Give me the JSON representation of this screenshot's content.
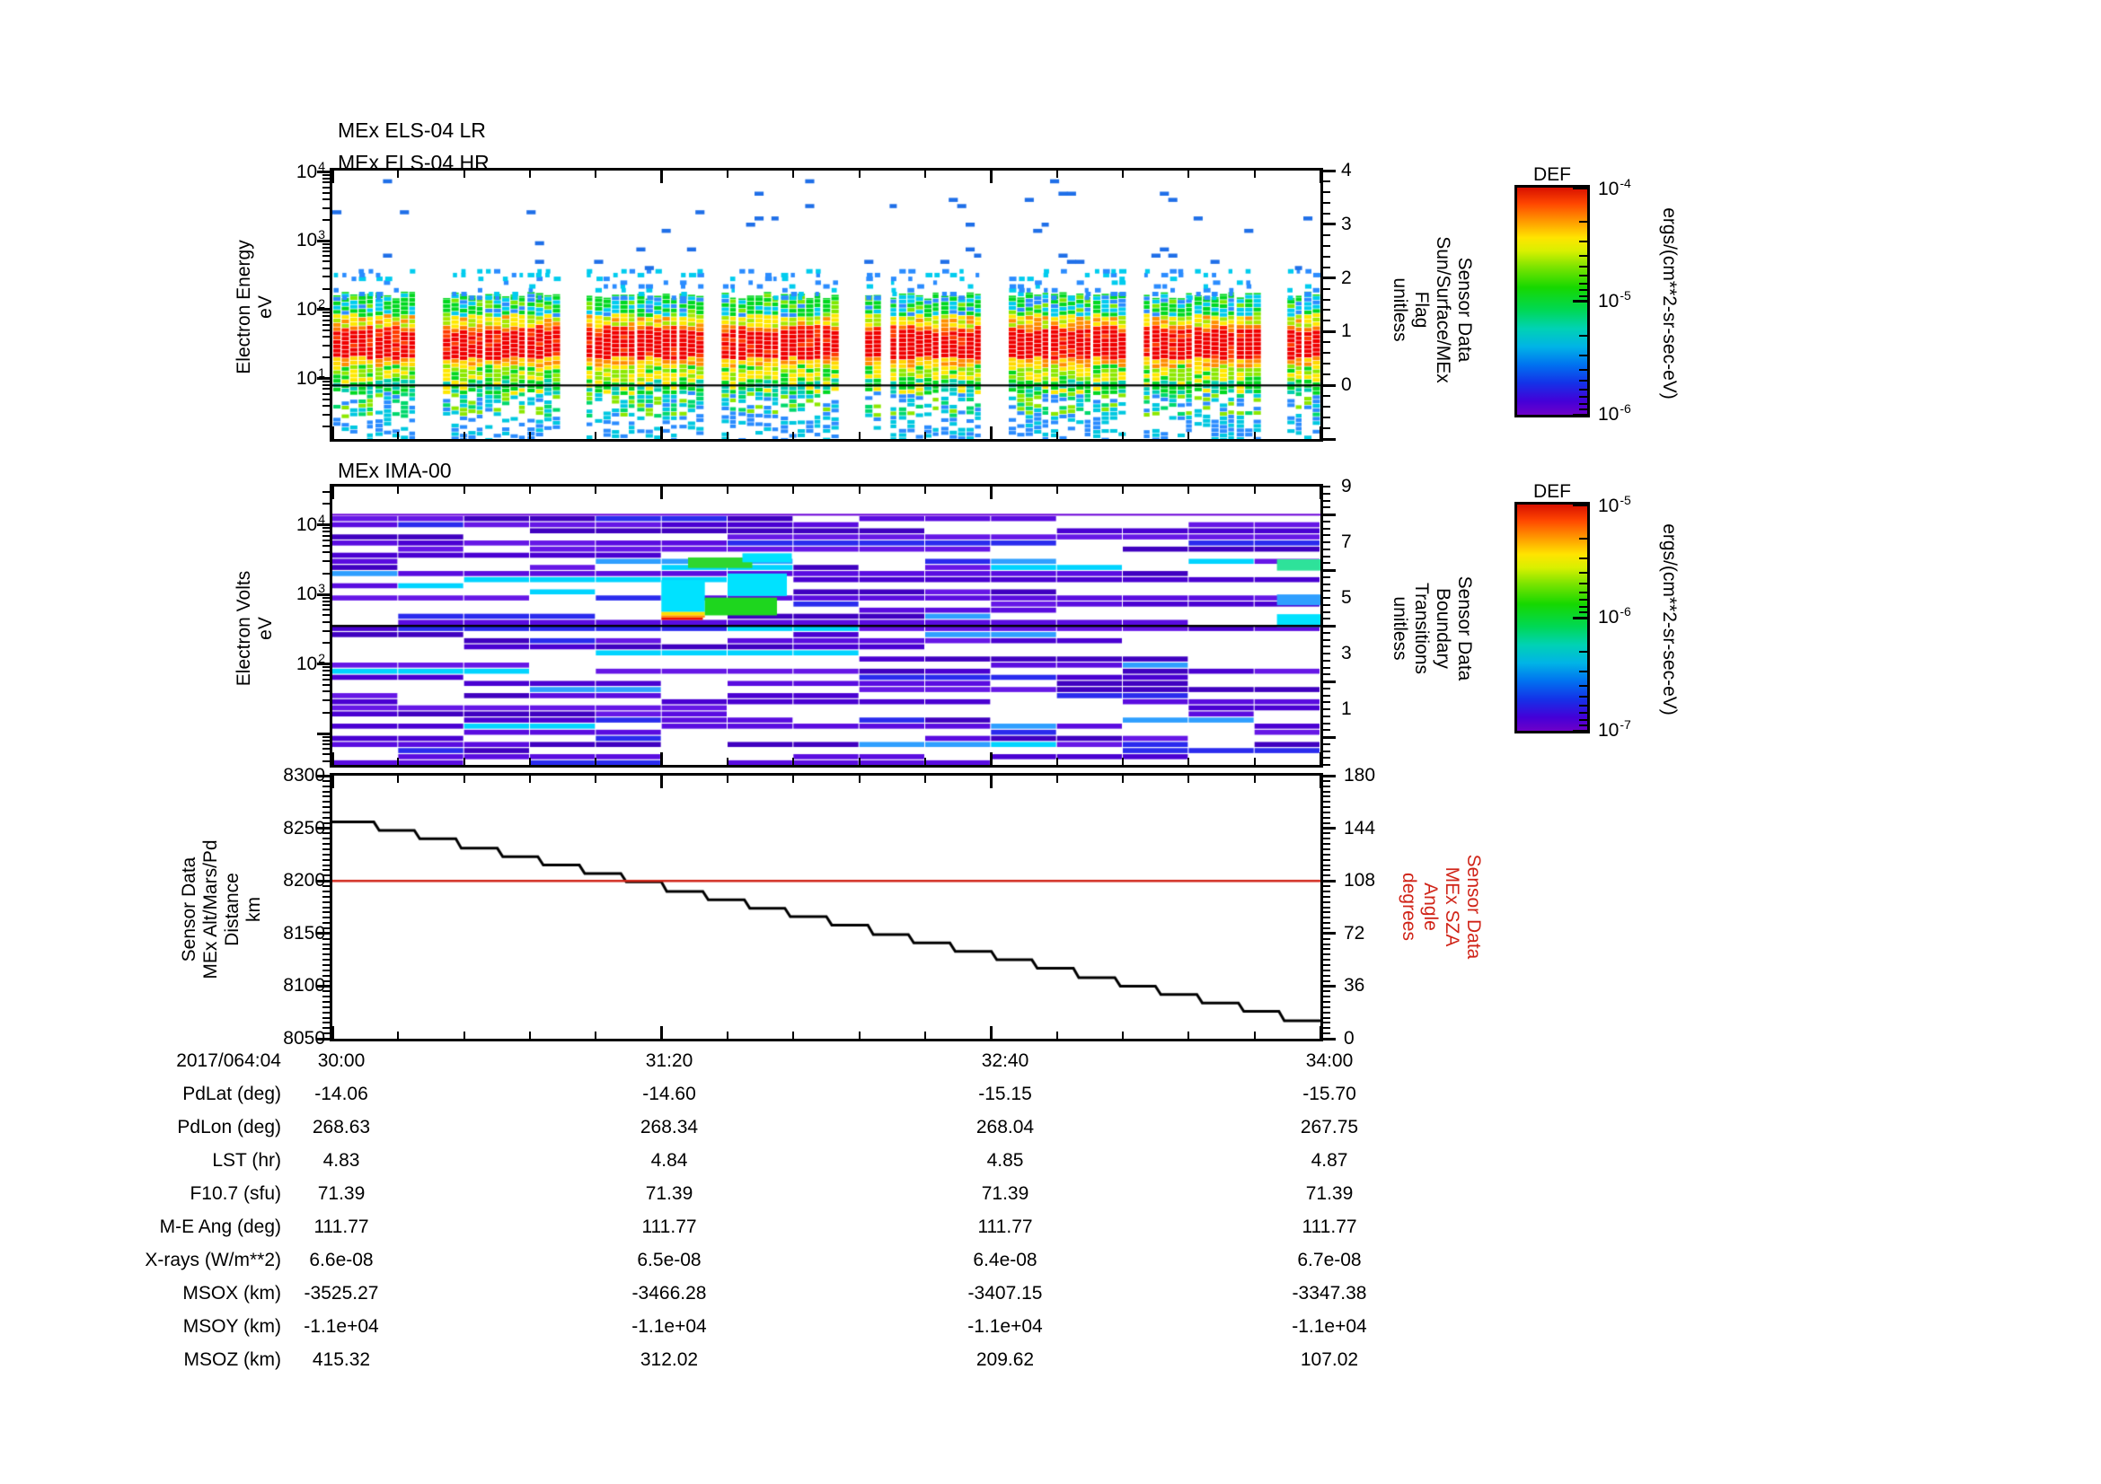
{
  "colors": {
    "axis": "#000000",
    "red": "#d02418",
    "background": "#ffffff"
  },
  "panels": {
    "els": {
      "titles": [
        "MEx ELS-04 LR",
        "MEx ELS-04 HR"
      ],
      "ylabel_lines": [
        "Electron Energy",
        "eV"
      ],
      "yticks": [
        {
          "b": "10",
          "e": "4"
        },
        {
          "b": "10",
          "e": "3"
        },
        {
          "b": "10",
          "e": "2"
        },
        {
          "b": "10",
          "e": "1"
        }
      ],
      "right_label_lines": [
        "Sensor Data",
        "Sun/Surface/MEx",
        "Flag",
        "unitless"
      ],
      "right_ticks": [
        "4",
        "3",
        "2",
        "1",
        "0"
      ]
    },
    "ima": {
      "title": "MEx IMA-00",
      "ylabel_lines": [
        "Electron Volts",
        "eV"
      ],
      "yticks": [
        {
          "b": "10",
          "e": "4"
        },
        {
          "b": "10",
          "e": "3"
        },
        {
          "b": "10",
          "e": "2"
        }
      ],
      "right_label_lines": [
        "Sensor Data",
        "Boundary",
        "Transitions",
        "unitless"
      ],
      "right_ticks": [
        "9",
        "7",
        "5",
        "3",
        "1"
      ]
    },
    "alt": {
      "ylabel_lines": [
        "Sensor Data",
        "MEx Alt/Mars/Pd",
        "Distance",
        "km"
      ],
      "yticks": [
        "8300",
        "8250",
        "8200",
        "8150",
        "8100",
        "8050"
      ],
      "right_label_lines": [
        "Sensor Data",
        "MEx SZA",
        "Angle",
        "degrees"
      ],
      "right_ticks": [
        "180",
        "144",
        "108",
        "72",
        "36",
        "0"
      ]
    }
  },
  "colorbars": [
    {
      "title": "DEF",
      "units": "ergs/(cm**2-sr-sec-eV)",
      "ticks": [
        {
          "b": "10",
          "e": "-4"
        },
        {
          "b": "10",
          "e": "-5"
        },
        {
          "b": "10",
          "e": "-6"
        }
      ]
    },
    {
      "title": "DEF",
      "units": "ergs/(cm**2-sr-sec-eV)",
      "ticks": [
        {
          "b": "10",
          "e": "-5"
        },
        {
          "b": "10",
          "e": "-6"
        },
        {
          "b": "10",
          "e": "-7"
        }
      ]
    }
  ],
  "xaxis": {
    "date": "2017/064:04",
    "ticks": [
      "30:00",
      "31:20",
      "32:40",
      "34:00"
    ]
  },
  "table": {
    "rows": [
      {
        "label": "PdLat (deg)",
        "values": [
          "-14.06",
          "-14.60",
          "-15.15",
          "-15.70"
        ]
      },
      {
        "label": "PdLon (deg)",
        "values": [
          "268.63",
          "268.34",
          "268.04",
          "267.75"
        ]
      },
      {
        "label": "LST (hr)",
        "values": [
          "4.83",
          "4.84",
          "4.85",
          "4.87"
        ]
      },
      {
        "label": "F10.7 (sfu)",
        "values": [
          "71.39",
          "71.39",
          "71.39",
          "71.39"
        ]
      },
      {
        "label": "M-E Ang (deg)",
        "values": [
          "111.77",
          "111.77",
          "111.77",
          "111.77"
        ]
      },
      {
        "label": "X-rays (W/m**2)",
        "values": [
          "6.6e-08",
          "6.5e-08",
          "6.4e-08",
          "6.7e-08"
        ]
      },
      {
        "label": "MSOX (km)",
        "values": [
          "-3525.27",
          "-3466.28",
          "-3407.15",
          "-3347.38"
        ]
      },
      {
        "label": "MSOY (km)",
        "values": [
          "-1.1e+04",
          "-1.1e+04",
          "-1.1e+04",
          "-1.1e+04"
        ]
      },
      {
        "label": "MSOZ (km)",
        "values": [
          "415.32",
          "312.02",
          "209.62",
          "107.02"
        ]
      }
    ]
  },
  "chart_data": [
    {
      "type": "heatmap",
      "title": "MEx ELS-04 LR / MEx ELS-04 HR",
      "x_range": [
        "2017/064 04:30:00",
        "2017/064 04:34:00"
      ],
      "y_axis": {
        "label": "Electron Energy (eV)",
        "scale": "log",
        "range": [
          1,
          10000
        ]
      },
      "colorbar": {
        "title": "DEF",
        "units": "ergs/(cm**2-sr-sec-eV)",
        "range_log10": [
          -6,
          -4
        ]
      },
      "right_axis": {
        "label": "Sensor Data Sun/Surface/MEx Flag (unitless)",
        "range": [
          -1,
          4
        ],
        "labeled_ticks": [
          0,
          1,
          2,
          3,
          4
        ],
        "overlay_line_value": 0
      },
      "pattern": {
        "log_top": 4.02,
        "log_span": 3.9,
        "red_band_eV": [
          20,
          60
        ],
        "yellow_band_eV": [
          60,
          90
        ],
        "green_band_eV": [
          90,
          150
        ],
        "scattered_cyan_blue_eV": [
          150,
          420
        ],
        "sparse_blue_eV": [
          420,
          10000
        ],
        "below_line_mix_eV": [
          1.2,
          6.5
        ],
        "cap_eV": 150,
        "flag_line_y_frac": 0.8,
        "col_w": 9.4,
        "gap_half": 0.011,
        "gaps": [
          0.1,
          0.243,
          0.385,
          0.528,
          0.67,
          0.813,
          0.952
        ]
      }
    },
    {
      "type": "heatmap",
      "title": "MEx IMA-00",
      "x_range": [
        "2017/064 04:30:00",
        "2017/064 04:34:00"
      ],
      "y_axis": {
        "label": "Electron Volts (eV)",
        "scale": "log",
        "range": [
          4,
          35000
        ]
      },
      "colorbar": {
        "title": "DEF",
        "units": "ergs/(cm**2-sr-sec-eV)",
        "range_log10": [
          -7,
          -5
        ]
      },
      "right_axis": {
        "label": "Sensor Data Boundary Transitions (unitless)",
        "range": [
          -1,
          9
        ],
        "labeled_ticks": [
          1,
          3,
          5,
          7,
          9
        ],
        "overlay_line_value": 4
      },
      "pattern": {
        "log_top": 4.55,
        "log_span": 4.0,
        "n_blocks": 15,
        "row_h": 6.8,
        "fill_prob": 0.55,
        "data_top_frac": 0.106,
        "data_bot_frac": 0.997,
        "line_y_frac": 0.5,
        "purple_line_color": "#6a00d8",
        "base_colors": [
          "#4a00d2",
          "#5a0ce0",
          "#4000c0",
          "#6617e6"
        ],
        "accent_colors": {
          "blue": "#2a2bee",
          "lightblue": "#2f9fff",
          "cyan": "#00d4ff"
        }
      },
      "features": [
        {
          "x": [
            0.333,
            0.377
          ],
          "eV": [
            560,
            1600
          ],
          "color": "#00e2ff"
        },
        {
          "x": [
            0.333,
            0.377
          ],
          "eV": [
            500,
            560
          ],
          "color": "#ffe000"
        },
        {
          "x": [
            0.333,
            0.377
          ],
          "eV": [
            466,
            500
          ],
          "color": "#ff9000"
        },
        {
          "x": [
            0.333,
            0.375
          ],
          "eV": [
            430,
            466
          ],
          "color": "#ee1200"
        },
        {
          "x": [
            0.377,
            0.45
          ],
          "eV": [
            500,
            900
          ],
          "color": "#1ed61e"
        },
        {
          "x": [
            0.36,
            0.425
          ],
          "eV": [
            2400,
            3400
          ],
          "color": "#2fd62f"
        },
        {
          "x": [
            0.4,
            0.46
          ],
          "eV": [
            950,
            2000
          ],
          "color": "#00e2ff"
        },
        {
          "x": [
            0.415,
            0.465
          ],
          "eV": [
            2900,
            3900
          ],
          "color": "#00e2ff"
        },
        {
          "x": [
            0.956,
            1.0
          ],
          "eV": [
            340,
            520
          ],
          "color": "#00e2ff"
        },
        {
          "x": [
            0.956,
            1.0
          ],
          "eV": [
            700,
            1000
          ],
          "color": "#2f9fff"
        },
        {
          "x": [
            0.956,
            1.0
          ],
          "eV": [
            2200,
            3200
          ],
          "color": "#2ee29a"
        }
      ]
    },
    {
      "type": "line",
      "x_ticks": [
        "30:00",
        "31:20",
        "32:40",
        "34:00"
      ],
      "x_start_label": "2017/064:04",
      "left_axis": {
        "label": "Sensor Data MEx Alt/Mars/Pd Distance (km)",
        "range": [
          8050,
          8300
        ],
        "major_step": 50
      },
      "right_axis": {
        "label": "Sensor Data MEx SZA Angle (degrees)",
        "range": [
          0,
          180
        ],
        "major_step": 36
      },
      "series": [
        {
          "name": "MEx Alt/Mars/Pd Distance",
          "color": "#000000",
          "style": "staircase",
          "steps": [
            [
              0.0,
              8256
            ],
            [
              0.042,
              8248
            ],
            [
              0.083,
              8240
            ],
            [
              0.125,
              8231
            ],
            [
              0.167,
              8223
            ],
            [
              0.208,
              8215
            ],
            [
              0.25,
              8207
            ],
            [
              0.292,
              8199
            ],
            [
              0.333,
              8190
            ],
            [
              0.375,
              8182
            ],
            [
              0.417,
              8174
            ],
            [
              0.458,
              8166
            ],
            [
              0.5,
              8158
            ],
            [
              0.542,
              8149
            ],
            [
              0.583,
              8141
            ],
            [
              0.625,
              8133
            ],
            [
              0.667,
              8125
            ],
            [
              0.708,
              8117
            ],
            [
              0.75,
              8108
            ],
            [
              0.792,
              8100
            ],
            [
              0.833,
              8092
            ],
            [
              0.875,
              8084
            ],
            [
              0.917,
              8076
            ],
            [
              0.958,
              8067
            ]
          ]
        },
        {
          "name": "MEx SZA Angle",
          "color": "#d02418",
          "style": "constant",
          "constant_value": 108
        }
      ]
    }
  ]
}
